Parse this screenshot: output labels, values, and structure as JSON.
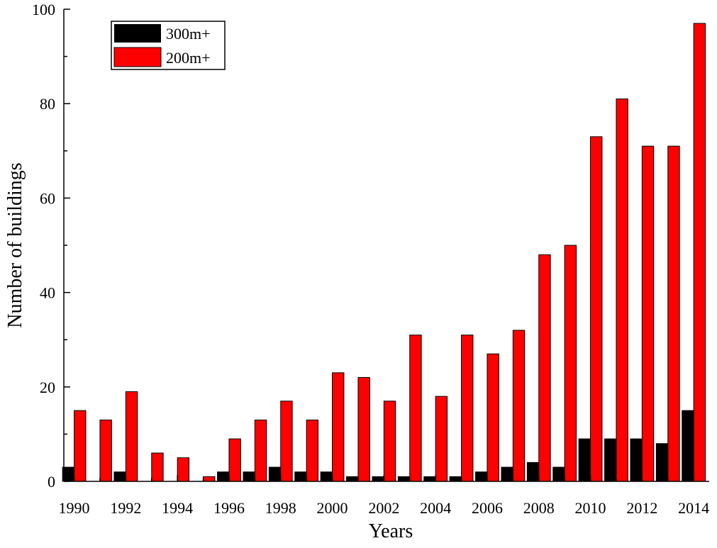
{
  "chart_data": {
    "type": "bar",
    "title": "",
    "xlabel": "Years",
    "ylabel": "Number of buildings",
    "x_tick_labels": [
      "1990",
      "1992",
      "1994",
      "1996",
      "1998",
      "2000",
      "2002",
      "2004",
      "2006",
      "2008",
      "2010",
      "2012",
      "2014"
    ],
    "y_tick_labels": [
      "0",
      "20",
      "40",
      "60",
      "80",
      "100"
    ],
    "ylim": [
      0,
      100
    ],
    "xlim": [
      1989.6,
      2014.6
    ],
    "grid": false,
    "legend_position": "top-left",
    "categories": [
      1990,
      1991,
      1992,
      1993,
      1994,
      1995,
      1996,
      1997,
      1998,
      1999,
      2000,
      2001,
      2002,
      2003,
      2004,
      2005,
      2006,
      2007,
      2008,
      2009,
      2010,
      2011,
      2012,
      2013,
      2014
    ],
    "series": [
      {
        "name": "300m+",
        "color": "#000000",
        "values": [
          3,
          0,
          2,
          0,
          0,
          0,
          2,
          2,
          3,
          2,
          2,
          1,
          1,
          1,
          1,
          1,
          2,
          3,
          4,
          3,
          9,
          9,
          9,
          8,
          15
        ]
      },
      {
        "name": "200m+",
        "color": "#ff0000",
        "values": [
          15,
          13,
          19,
          6,
          5,
          1,
          9,
          13,
          17,
          13,
          23,
          22,
          17,
          31,
          18,
          31,
          27,
          32,
          48,
          50,
          73,
          81,
          71,
          71,
          97
        ]
      }
    ]
  }
}
